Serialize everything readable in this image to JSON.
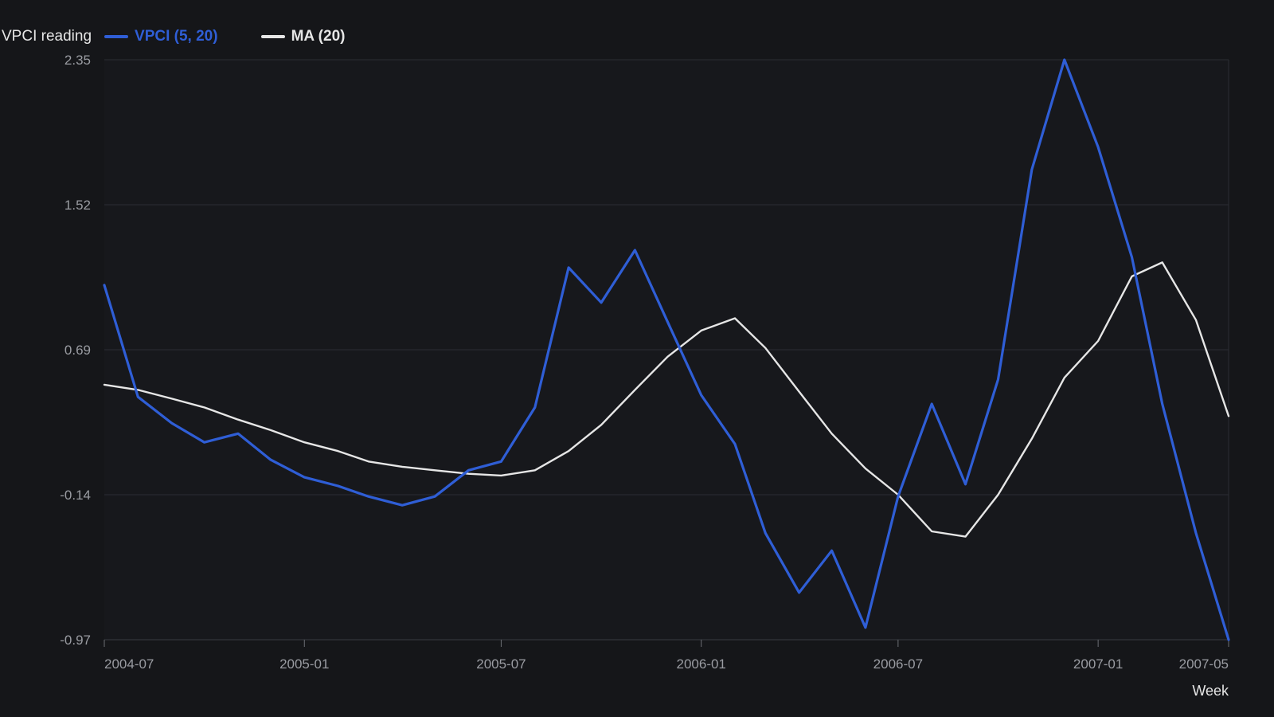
{
  "colors": {
    "background": "#151619",
    "plot_background": "#17181c",
    "grid": "#2b2d33",
    "axis_text": "#9a9ca2",
    "series_vpci": "#2f5ed6",
    "series_ma": "#e6e6e6"
  },
  "chart_data": {
    "type": "line",
    "title": "",
    "xlabel": "Week",
    "ylabel": "VPCI reading",
    "ylim": [
      -0.97,
      2.35
    ],
    "yticks": [
      "2.35",
      "1.52",
      "0.69",
      "-0.14",
      "-0.97"
    ],
    "xticks": [
      "2004-07",
      "2005-01",
      "2005-07",
      "2006-01",
      "2006-07",
      "2007-01",
      "2007-05"
    ],
    "legend_position": "top-left",
    "grid": true,
    "x": [
      "2004-07-01",
      "2004-08-01",
      "2004-09-01",
      "2004-10-01",
      "2004-11-01",
      "2004-12-01",
      "2005-01-01",
      "2005-02-01",
      "2005-03-01",
      "2005-04-01",
      "2005-05-01",
      "2005-06-01",
      "2005-07-01",
      "2005-08-01",
      "2005-09-01",
      "2005-10-01",
      "2005-11-01",
      "2005-12-01",
      "2006-01-01",
      "2006-02-01",
      "2006-03-01",
      "2006-04-01",
      "2006-05-01",
      "2006-06-01",
      "2006-07-01",
      "2006-08-01",
      "2006-09-01",
      "2006-10-01",
      "2006-11-01",
      "2006-12-01",
      "2007-01-01",
      "2007-02-01",
      "2007-03-01",
      "2007-04-01",
      "2007-05-01"
    ],
    "series": [
      {
        "name": "VPCI (5, 20)",
        "color": "#2f5ed6",
        "values": [
          1.06,
          0.42,
          0.27,
          0.16,
          0.21,
          0.06,
          -0.04,
          -0.09,
          -0.15,
          -0.2,
          -0.15,
          0.0,
          0.05,
          0.36,
          1.16,
          0.96,
          1.26,
          0.85,
          0.43,
          0.15,
          -0.36,
          -0.7,
          -0.46,
          -0.9,
          -0.15,
          0.38,
          -0.08,
          0.52,
          1.72,
          2.35,
          1.85,
          1.22,
          0.38,
          -0.36,
          -0.97
        ]
      },
      {
        "name": "MA (20)",
        "color": "#e6e6e6",
        "values": [
          0.49,
          0.46,
          0.41,
          0.36,
          0.29,
          0.23,
          0.16,
          0.11,
          0.05,
          0.02,
          0.0,
          -0.02,
          -0.03,
          0.0,
          0.11,
          0.26,
          0.46,
          0.65,
          0.8,
          0.87,
          0.7,
          0.45,
          0.21,
          0.01,
          -0.14,
          -0.35,
          -0.38,
          -0.14,
          0.18,
          0.53,
          0.74,
          1.11,
          1.19,
          0.86,
          0.31
        ]
      }
    ]
  }
}
